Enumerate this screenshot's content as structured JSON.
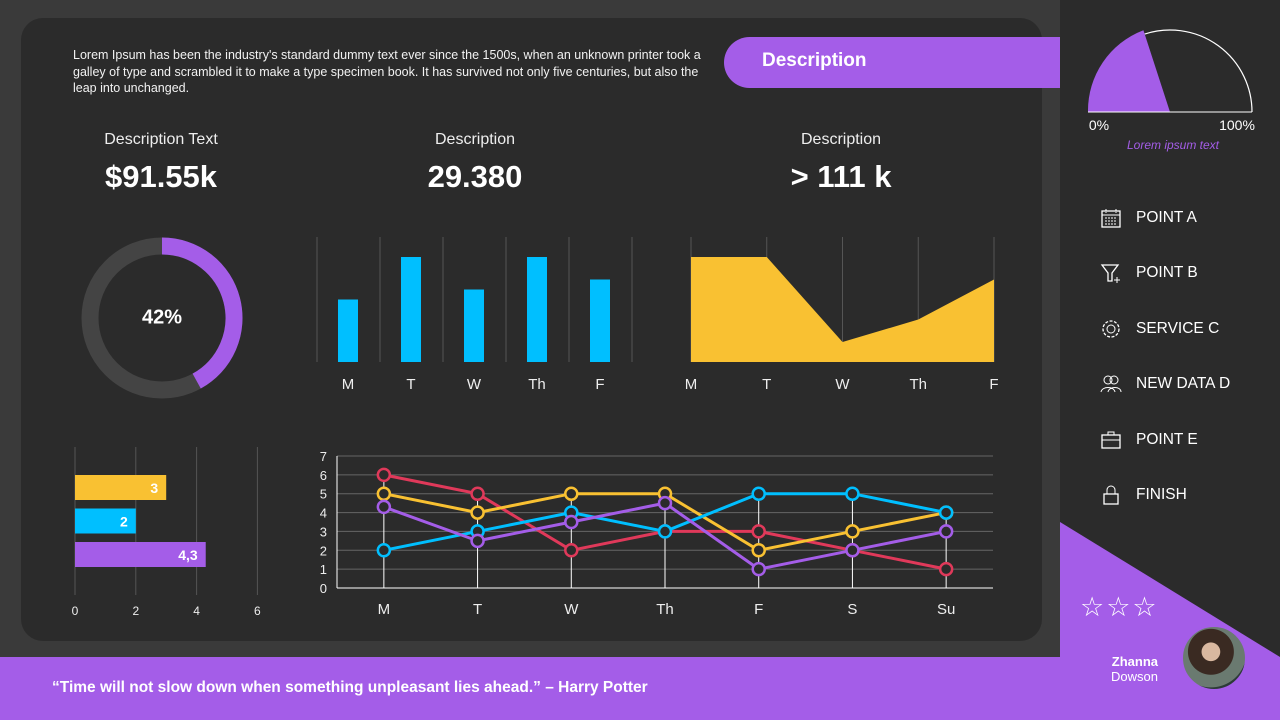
{
  "intro_text": "Lorem Ipsum has been the industry's standard dummy text ever since the 1500s, when an unknown printer took a galley of type and scrambled it to make a type specimen book. It has survived not only five centuries, but also the leap into unchanged.",
  "description_banner": "Description",
  "kpis": [
    {
      "label": "Description Text",
      "value": "$91.55k"
    },
    {
      "label": "Description",
      "value": "29.380"
    },
    {
      "label": "Description",
      "value": "> 111 k"
    }
  ],
  "colors": {
    "purple": "#a45de8",
    "blue": "#00bfff",
    "yellow": "#f9c132",
    "red": "#e0395a",
    "track": "#444444"
  },
  "chart_data": [
    {
      "type": "pie",
      "variant": "donut",
      "value": 42,
      "label": "42%"
    },
    {
      "type": "bar",
      "categories": [
        "M",
        "T",
        "W",
        "Th",
        "F"
      ],
      "values": [
        2.5,
        4.2,
        2.9,
        4.2,
        3.3
      ],
      "ylim": [
        0,
        5
      ],
      "color": "#00bfff",
      "grid": true
    },
    {
      "type": "area",
      "categories": [
        "M",
        "T",
        "W",
        "Th",
        "F"
      ],
      "values": [
        4.2,
        4.2,
        0.8,
        1.7,
        3.3
      ],
      "ylim": [
        0,
        5
      ],
      "color": "#f9c132",
      "grid": true
    },
    {
      "type": "bar",
      "orientation": "horizontal",
      "values": [
        3,
        2,
        4.3
      ],
      "labels": [
        "3",
        "2",
        "4,3"
      ],
      "colors": [
        "#f9c132",
        "#00bfff",
        "#a45de8"
      ],
      "xticks": [
        "0",
        "2",
        "4",
        "6"
      ],
      "xlim": [
        0,
        6
      ],
      "grid": true
    },
    {
      "type": "line",
      "categories": [
        "M",
        "T",
        "W",
        "Th",
        "F",
        "S",
        "Su"
      ],
      "yticks": [
        "0",
        "1",
        "2",
        "3",
        "4",
        "5",
        "6",
        "7"
      ],
      "ylim": [
        0,
        7
      ],
      "grid": true,
      "series": [
        {
          "color": "#e0395a",
          "values": [
            6,
            5,
            2,
            3,
            3,
            2,
            1
          ]
        },
        {
          "color": "#f9c132",
          "values": [
            5,
            4,
            5,
            5,
            2,
            3,
            4
          ]
        },
        {
          "color": "#00bfff",
          "values": [
            2,
            3,
            4,
            3,
            5,
            5,
            4
          ]
        },
        {
          "color": "#a45de8",
          "values": [
            4.3,
            2.5,
            3.5,
            4.5,
            1,
            2,
            3
          ]
        }
      ]
    },
    {
      "type": "pie",
      "variant": "gauge",
      "value": 40,
      "min_label": "0%",
      "max_label": "100%",
      "caption": "Lorem ipsum text"
    }
  ],
  "menu": [
    {
      "label": "POINT A",
      "icon": "calendar-icon"
    },
    {
      "label": "POINT B",
      "icon": "funnel-icon"
    },
    {
      "label": "SERVICE C",
      "icon": "gear-icon"
    },
    {
      "label": "NEW DATA D",
      "icon": "users-icon"
    },
    {
      "label": "POINT E",
      "icon": "briefcase-icon"
    },
    {
      "label": "FINISH",
      "icon": "lock-icon"
    }
  ],
  "rating": {
    "stars": "☆☆☆"
  },
  "user": {
    "first": "Zhanna",
    "last": "Dowson"
  },
  "quote": "“Time will not slow down when something unpleasant lies ahead.” – Harry Potter"
}
